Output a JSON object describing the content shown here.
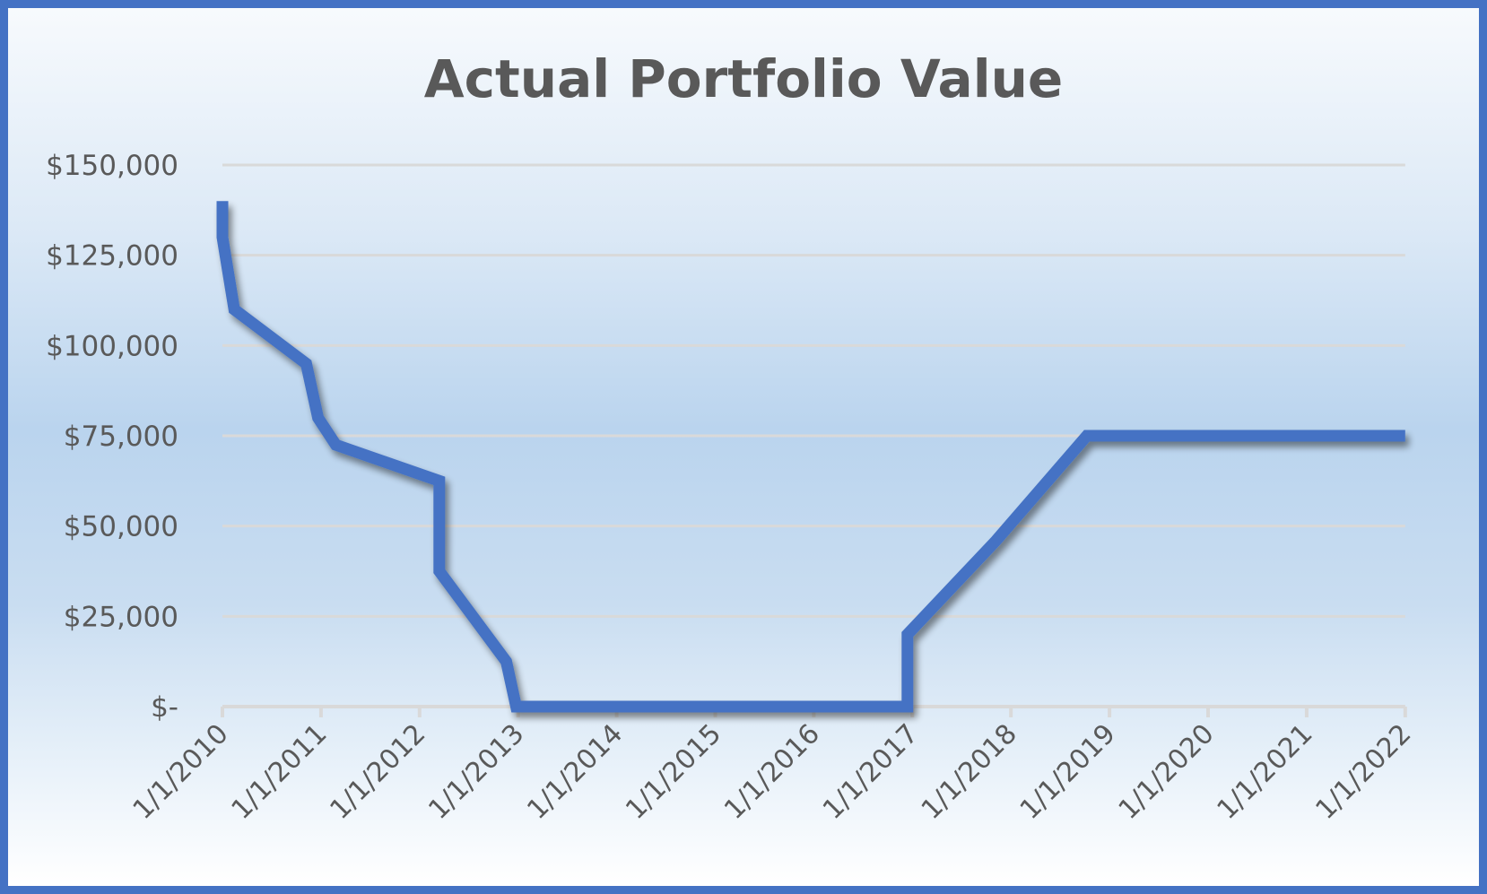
{
  "chart_data": {
    "type": "line",
    "title": "Actual Portfolio Value",
    "xlabel": "",
    "ylabel": "",
    "ylim": [
      0,
      150000
    ],
    "xlim": [
      "1/1/2010",
      "1/1/2022"
    ],
    "grid": true,
    "legend": null,
    "y_ticks": [
      "$-",
      "$25,000",
      "$50,000",
      "$75,000",
      "$100,000",
      "$125,000",
      "$150,000"
    ],
    "y_tick_values": [
      0,
      25000,
      50000,
      75000,
      100000,
      125000,
      150000
    ],
    "x_ticks": [
      "1/1/2010",
      "1/1/2011",
      "1/1/2012",
      "1/1/2013",
      "1/1/2014",
      "1/1/2015",
      "1/1/2016",
      "1/1/2017",
      "1/1/2018",
      "1/1/2019",
      "1/1/2020",
      "1/1/2021",
      "1/1/2022"
    ],
    "series": [
      {
        "name": "Actual Portfolio Value",
        "color": "#4472C4",
        "points": [
          {
            "x": 2010.0,
            "y": 140000
          },
          {
            "x": 2010.0,
            "y": 130000
          },
          {
            "x": 2010.12,
            "y": 110000
          },
          {
            "x": 2010.85,
            "y": 95000
          },
          {
            "x": 2010.97,
            "y": 80000
          },
          {
            "x": 2011.15,
            "y": 72500
          },
          {
            "x": 2012.2,
            "y": 62500
          },
          {
            "x": 2012.2,
            "y": 37500
          },
          {
            "x": 2012.88,
            "y": 12500
          },
          {
            "x": 2012.98,
            "y": 0
          },
          {
            "x": 2016.95,
            "y": 0
          },
          {
            "x": 2016.95,
            "y": 20000
          },
          {
            "x": 2017.85,
            "y": 46000
          },
          {
            "x": 2018.77,
            "y": 75000
          },
          {
            "x": 2022.0,
            "y": 75000
          }
        ]
      }
    ]
  },
  "colors": {
    "border": "#4472C4",
    "line": "#4472C4",
    "grid": "#D9D9D9",
    "text": "#595959"
  }
}
